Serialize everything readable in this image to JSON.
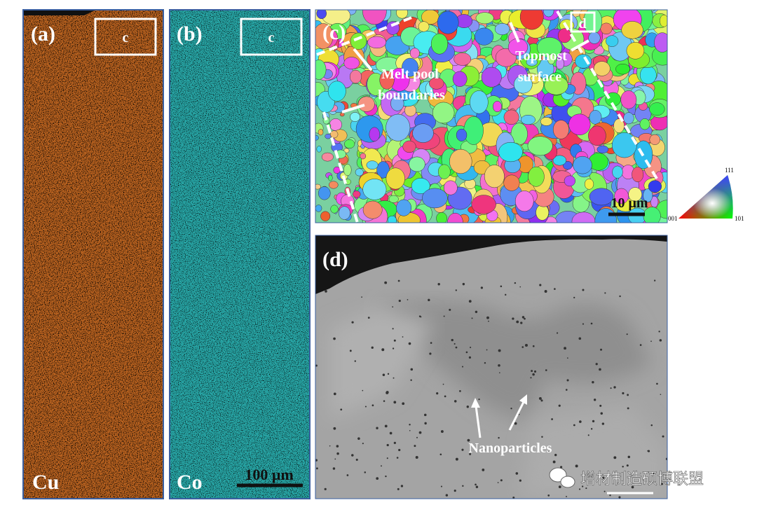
{
  "panels": {
    "a": {
      "label": "(a)",
      "box_label": "c",
      "element": "Cu"
    },
    "b": {
      "label": "(b)",
      "box_label": "c",
      "element": "Co",
      "scale_bar": "100 μm"
    },
    "c": {
      "label": "(c)",
      "box_label": "d",
      "annotations": [
        [
          "Melt pool",
          "boundaries"
        ],
        [
          "Topmost",
          "surface"
        ]
      ],
      "scale_bar": "10 μm",
      "ipf_legend": {
        "top": "111",
        "left": "001",
        "right": "101"
      }
    },
    "d": {
      "label": "(d)",
      "annotation": "Nanoparticles"
    }
  },
  "watermark": "增材制造硕博联盟"
}
